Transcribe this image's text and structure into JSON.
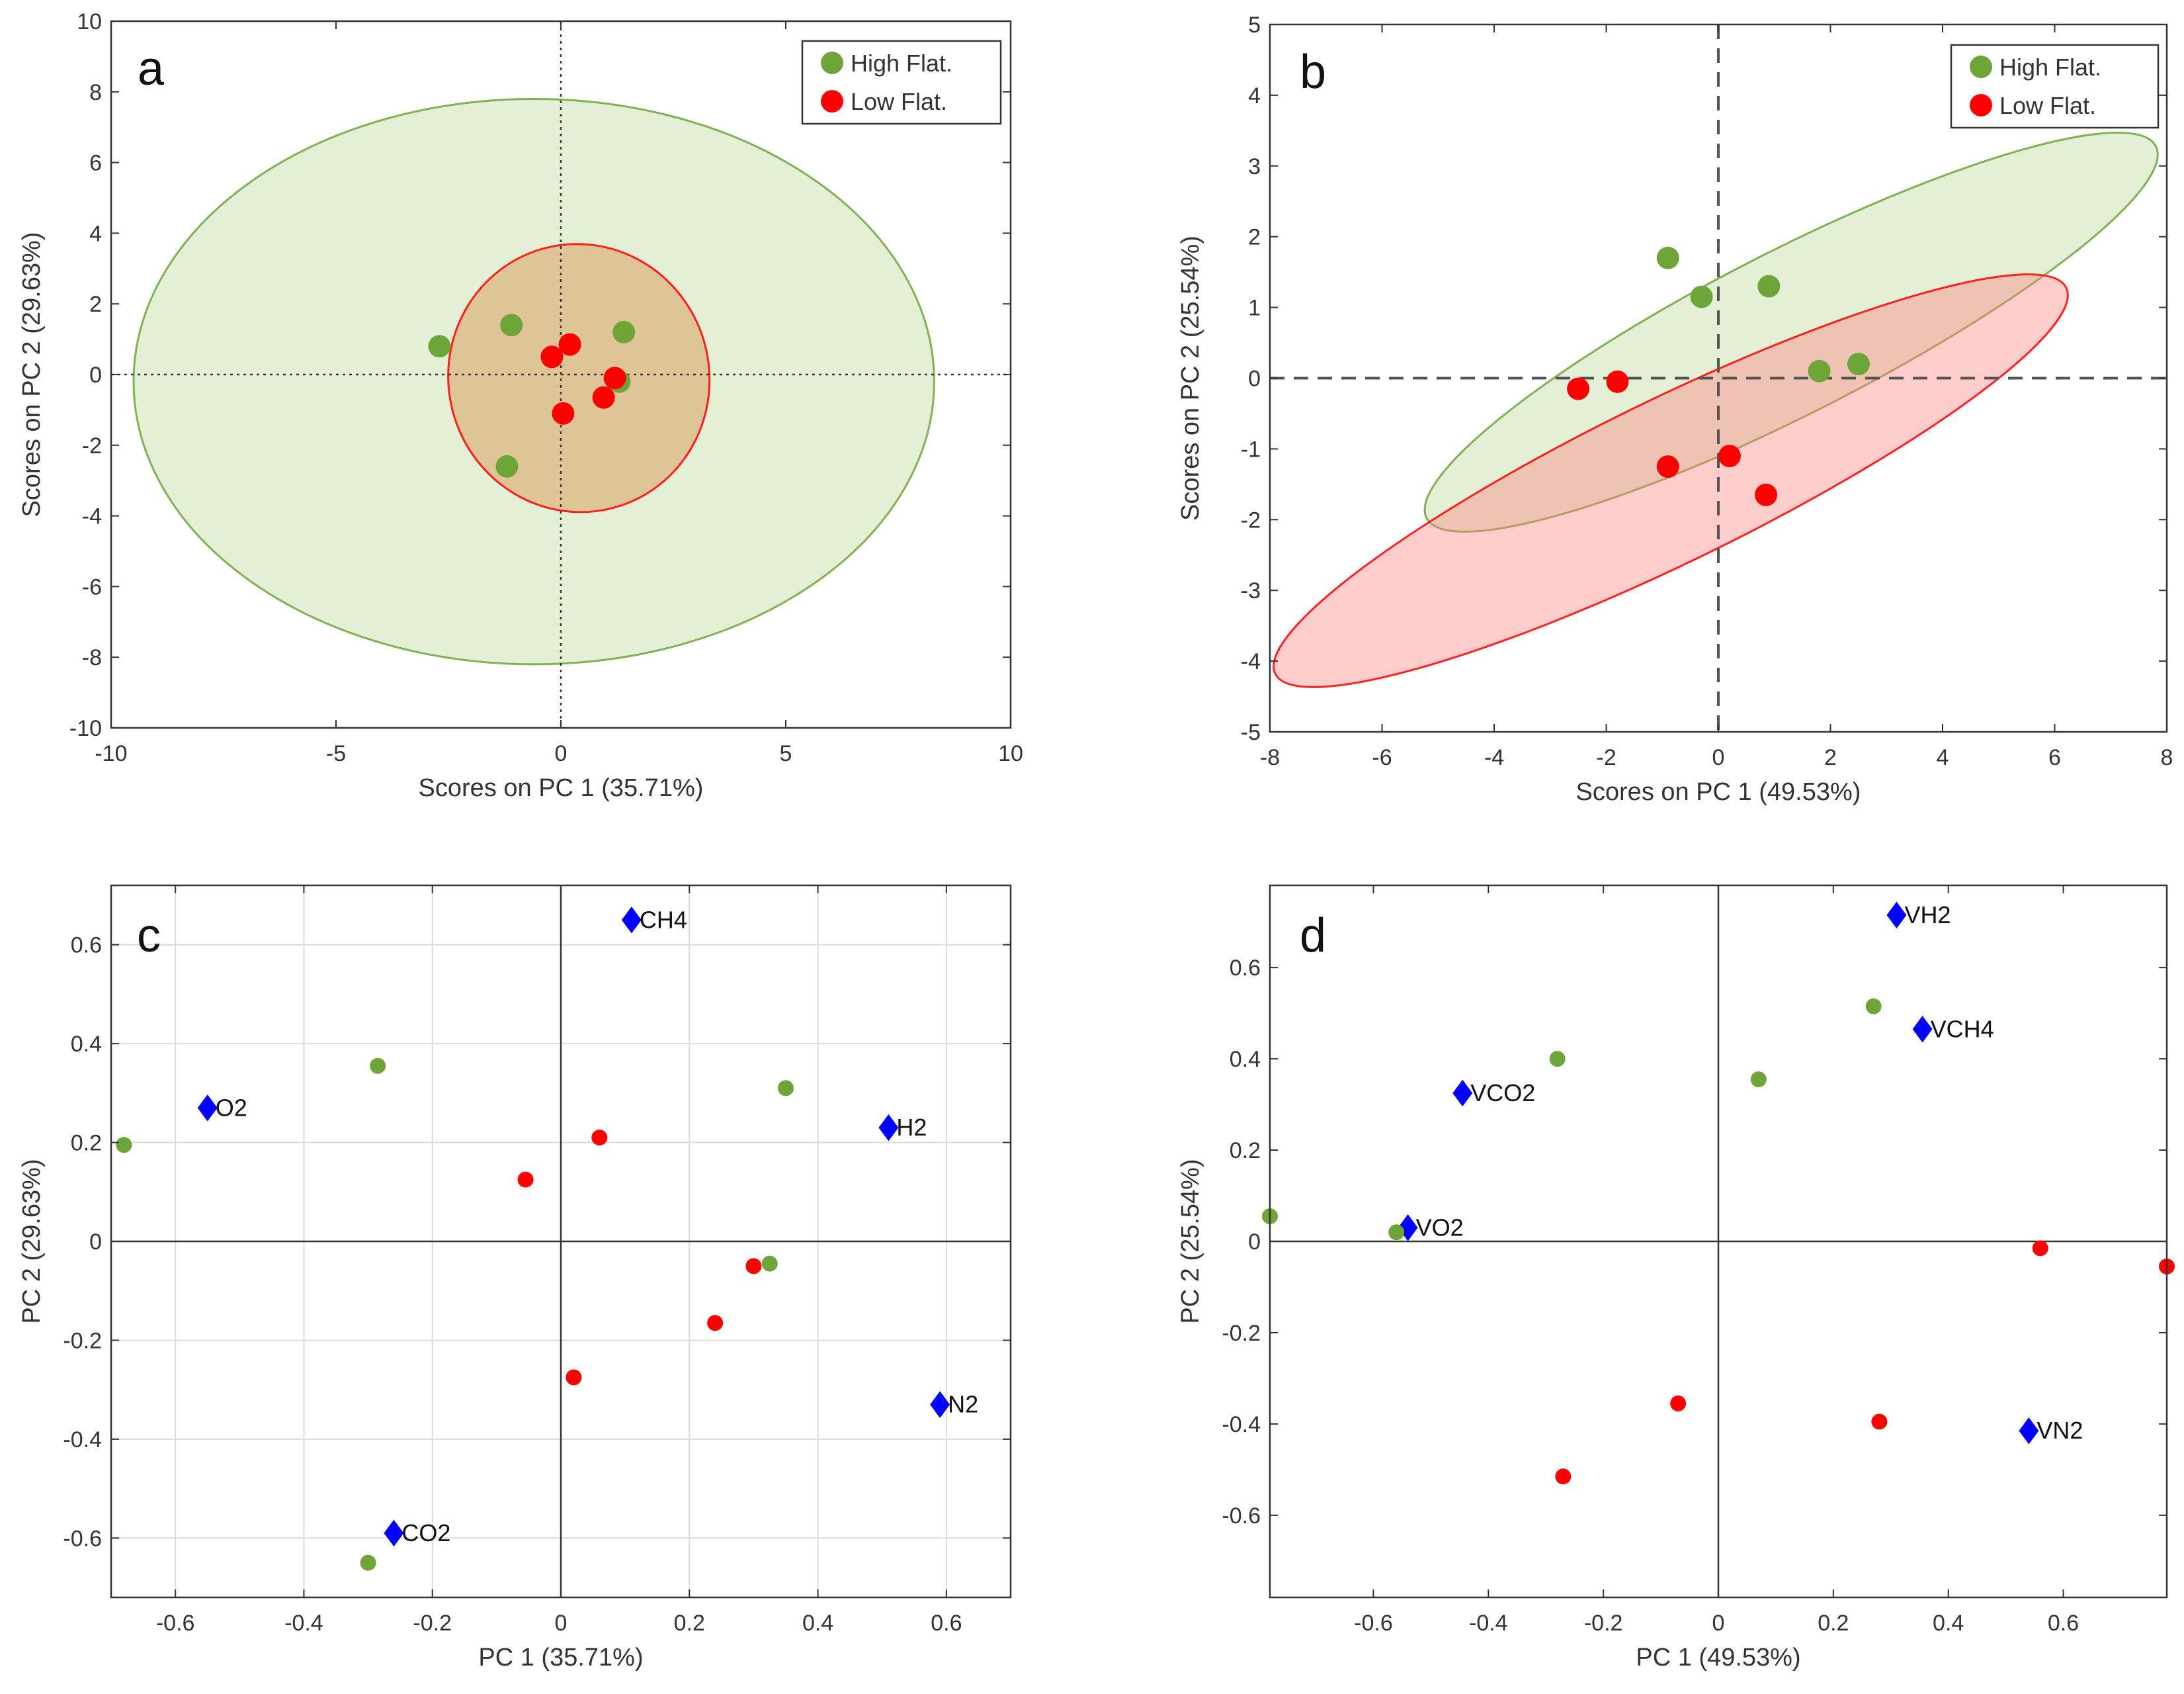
{
  "figure": {
    "colors": {
      "high_flat": "#6ea539",
      "low_flat": "#ff0000",
      "high_flat_ellipse_fill": "#a8cf7c",
      "low_flat_ellipse_fill": "#ff8080",
      "low_flat_ellipse_fill_a": "#d9813b",
      "loading": "#0000ff",
      "axis": "#333333"
    }
  },
  "chart_data": [
    {
      "id": "a",
      "type": "scatter",
      "panel_label": "a",
      "xlabel": "Scores on PC 1 (35.71%)",
      "ylabel": "Scores on PC 2 (29.63%)",
      "xlim": [
        -10,
        10
      ],
      "ylim": [
        -10,
        10
      ],
      "xticks": [
        -10,
        -5,
        0,
        5,
        10
      ],
      "yticks": [
        -10,
        -8,
        -6,
        -4,
        -2,
        0,
        2,
        4,
        6,
        8,
        10
      ],
      "zero_lines": "dotted",
      "legend": {
        "position": "top-right",
        "entries": [
          {
            "label": "High Flat.",
            "series": "high_flat"
          },
          {
            "label": "Low Flat.",
            "series": "low_flat"
          }
        ]
      },
      "series": [
        {
          "name": "High Flat.",
          "key": "high_flat",
          "points": [
            [
              -2.7,
              0.8
            ],
            [
              -1.1,
              1.4
            ],
            [
              1.4,
              1.2
            ],
            [
              1.3,
              -0.2
            ],
            [
              -1.2,
              -2.6
            ]
          ]
        },
        {
          "name": "Low Flat.",
          "key": "low_flat",
          "points": [
            [
              -0.2,
              0.5
            ],
            [
              0.2,
              0.85
            ],
            [
              1.2,
              -0.1
            ],
            [
              0.95,
              -0.65
            ],
            [
              0.05,
              -1.1
            ]
          ]
        }
      ],
      "ellipses": [
        {
          "series": "high_flat",
          "center": [
            -0.6,
            -0.2
          ],
          "radii": [
            8.9,
            8.0
          ],
          "rotation_deg": 0
        },
        {
          "series": "low_flat",
          "center": [
            0.4,
            -0.1
          ],
          "radii": [
            2.9,
            3.8
          ],
          "rotation_deg": 15
        }
      ]
    },
    {
      "id": "b",
      "type": "scatter",
      "panel_label": "b",
      "xlabel": "Scores on PC 1 (49.53%)",
      "ylabel": "Scores on PC 2 (25.54%)",
      "xlim": [
        -8,
        8
      ],
      "ylim": [
        -5,
        5
      ],
      "xticks": [
        -8,
        -6,
        -4,
        -2,
        0,
        2,
        4,
        6,
        8
      ],
      "yticks": [
        -5,
        -4,
        -3,
        -2,
        -1,
        0,
        1,
        2,
        3,
        4,
        5
      ],
      "zero_lines": "dashed",
      "legend": {
        "position": "top-right",
        "entries": [
          {
            "label": "High Flat.",
            "series": "high_flat"
          },
          {
            "label": "Low Flat.",
            "series": "low_flat"
          }
        ]
      },
      "series": [
        {
          "name": "High Flat.",
          "key": "high_flat",
          "points": [
            [
              -0.9,
              1.7
            ],
            [
              -0.3,
              1.15
            ],
            [
              0.9,
              1.3
            ],
            [
              1.8,
              0.1
            ],
            [
              2.5,
              0.2
            ]
          ]
        },
        {
          "name": "Low Flat.",
          "key": "low_flat",
          "points": [
            [
              -2.5,
              -0.15
            ],
            [
              -1.8,
              -0.05
            ],
            [
              -0.9,
              -1.25
            ],
            [
              0.2,
              -1.1
            ],
            [
              0.85,
              -1.65
            ]
          ]
        }
      ],
      "ellipses": [
        {
          "series": "high_flat",
          "center": [
            1.3,
            0.65
          ],
          "radii": [
            7.3,
            1.15
          ],
          "rotation_deg": 27
        },
        {
          "series": "low_flat",
          "center": [
            -0.85,
            -1.45
          ],
          "radii": [
            7.85,
            1.15
          ],
          "rotation_deg": 26
        }
      ]
    },
    {
      "id": "c",
      "type": "scatter",
      "panel_label": "c",
      "xlabel": "PC 1 (35.71%)",
      "ylabel": "PC 2 (29.63%)",
      "xlim": [
        -0.7,
        0.7
      ],
      "ylim": [
        -0.72,
        0.72
      ],
      "xticks": [
        -0.6,
        -0.4,
        -0.2,
        0,
        0.2,
        0.4,
        0.6
      ],
      "xtick_labels": [
        "-0.6",
        "-0.4",
        "-0.2",
        "0",
        "0.2",
        "0.4",
        "0.6"
      ],
      "yticks": [
        -0.6,
        -0.4,
        -0.2,
        0,
        0.2,
        0.4,
        0.6
      ],
      "ytick_labels": [
        "-0.6",
        "-0.4",
        "-0.2",
        "0",
        "0.2",
        "0.4",
        "0.6"
      ],
      "grid": true,
      "zero_lines": "solid",
      "series": [
        {
          "name": "High Flat.",
          "key": "high_flat",
          "points": [
            [
              -0.68,
              0.195
            ],
            [
              -0.285,
              0.355
            ],
            [
              0.35,
              0.31
            ],
            [
              0.325,
              -0.045
            ],
            [
              -0.3,
              -0.65
            ]
          ]
        },
        {
          "name": "Low Flat.",
          "key": "low_flat",
          "points": [
            [
              -0.055,
              0.125
            ],
            [
              0.06,
              0.21
            ],
            [
              0.3,
              -0.05
            ],
            [
              0.24,
              -0.165
            ],
            [
              0.02,
              -0.275
            ]
          ]
        }
      ],
      "loadings": [
        {
          "label": "CH4",
          "x": 0.11,
          "y": 0.65
        },
        {
          "label": "O2",
          "x": -0.55,
          "y": 0.27
        },
        {
          "label": "H2",
          "x": 0.51,
          "y": 0.23
        },
        {
          "label": "N2",
          "x": 0.59,
          "y": -0.33
        },
        {
          "label": "CO2",
          "x": -0.26,
          "y": -0.59
        }
      ]
    },
    {
      "id": "d",
      "type": "scatter",
      "panel_label": "d",
      "xlabel": "PC 1 (49.53%)",
      "ylabel": "PC 2 (25.54%)",
      "xlim": [
        -0.78,
        0.78
      ],
      "ylim": [
        -0.78,
        0.78
      ],
      "xticks": [
        -0.6,
        -0.4,
        -0.2,
        0,
        0.2,
        0.4,
        0.6
      ],
      "xtick_labels": [
        "-0.6",
        "-0.4",
        "-0.2",
        "0",
        "0.2",
        "0.4",
        "0.6"
      ],
      "yticks": [
        -0.6,
        -0.4,
        -0.2,
        0,
        0.2,
        0.4,
        0.6
      ],
      "ytick_labels": [
        "-0.6",
        "-0.4",
        "-0.2",
        "0",
        "0.2",
        "0.4",
        "0.6"
      ],
      "grid": false,
      "zero_lines": "solid",
      "series": [
        {
          "name": "High Flat.",
          "key": "high_flat",
          "points": [
            [
              -0.78,
              0.055
            ],
            [
              -0.56,
              0.02
            ],
            [
              -0.28,
              0.4
            ],
            [
              0.07,
              0.355
            ],
            [
              0.27,
              0.515
            ]
          ]
        },
        {
          "name": "Low Flat.",
          "key": "low_flat",
          "points": [
            [
              0.56,
              -0.015
            ],
            [
              0.78,
              -0.055
            ],
            [
              -0.07,
              -0.355
            ],
            [
              0.28,
              -0.395
            ],
            [
              -0.27,
              -0.515
            ]
          ]
        }
      ],
      "loadings": [
        {
          "label": "VH2",
          "x": 0.31,
          "y": 0.715
        },
        {
          "label": "VCH4",
          "x": 0.355,
          "y": 0.465
        },
        {
          "label": "VCO2",
          "x": -0.445,
          "y": 0.325
        },
        {
          "label": "VO2",
          "x": -0.54,
          "y": 0.03
        },
        {
          "label": "VN2",
          "x": 0.54,
          "y": -0.415
        }
      ]
    }
  ]
}
